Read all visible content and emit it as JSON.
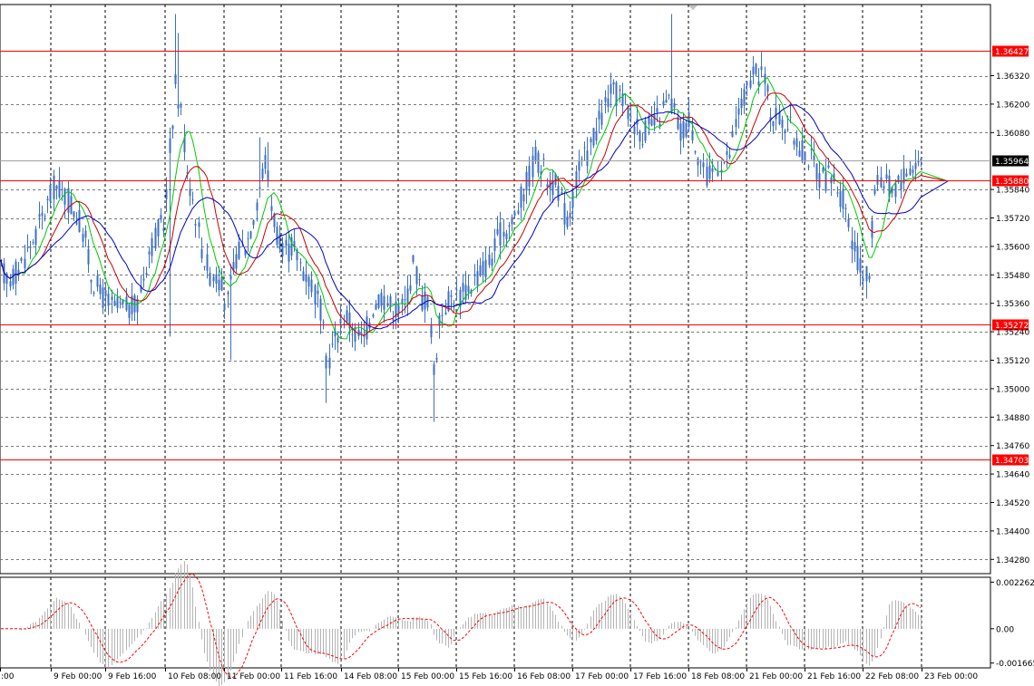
{
  "colors": {
    "background": "#ffffff",
    "frame": "#000000",
    "grid": "#000000",
    "candle": "#3d6fc4",
    "level_line": "#ff0000",
    "level_box": "#ff0000",
    "bid_line": "#a0a0a0",
    "bid_box": "#000000",
    "ma_fast": "#00cc00",
    "ma_mid": "#cc0000",
    "ma_slow": "#0000cc",
    "osc_hist": "#b4b4b4",
    "osc_signal": "#ff0000"
  },
  "chart_data": {
    "type": "candlestick",
    "price_axis": {
      "min": 1.3422,
      "max": 1.3662,
      "ticks": [
        "1.36320",
        "1.36200",
        "1.36080",
        "1.35840",
        "1.35720",
        "1.35600",
        "1.35480",
        "1.35360",
        "1.35240",
        "1.35120",
        "1.35000",
        "1.34880",
        "1.34760",
        "1.34640",
        "1.34520",
        "1.34400",
        "1.34280"
      ]
    },
    "time_axis": {
      "labels": [
        ":00",
        "9 Feb 00:00",
        "9 Feb 16:00",
        "10 Feb 08:00",
        "11 Feb 00:00",
        "11 Feb 16:00",
        "14 Feb 08:00",
        "15 Feb 00:00",
        "15 Feb 16:00",
        "16 Feb 08:00",
        "17 Feb 00:00",
        "17 Feb 16:00",
        "18 Feb 08:00",
        "21 Feb 00:00",
        "21 Feb 16:00",
        "22 Feb 08:00",
        "23 Feb 00:00"
      ]
    },
    "levels": [
      "1.36427",
      "1.35880",
      "1.35272",
      "1.34703"
    ],
    "bid": "1.35964",
    "oscillator": {
      "ticks": [
        "0.002262",
        "0.00",
        "-0.001665"
      ],
      "min": -0.0019,
      "max": 0.0025
    },
    "grid": true
  }
}
